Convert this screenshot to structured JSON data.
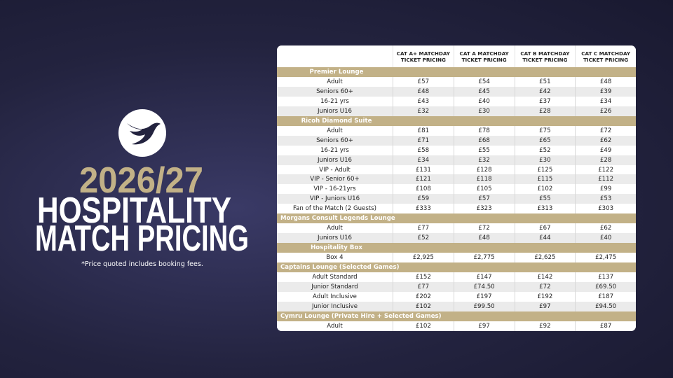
{
  "header": {
    "year": "2026/27",
    "line1": "HOSPITALITY",
    "line2": "MATCH PRICING",
    "note": "*Price quoted includes booking fees."
  },
  "table": {
    "columns": [
      [
        "CAT A+ MATCHDAY",
        "TICKET PRICING"
      ],
      [
        "CAT A MATCHDAY",
        "TICKET PRICING"
      ],
      [
        "CAT B MATCHDAY",
        "TICKET PRICING"
      ],
      [
        "CAT C MATCHDAY",
        "TICKET PRICING"
      ]
    ],
    "sections": [
      {
        "name": "Premier Lounge",
        "rows": [
          [
            "Adult",
            "£57",
            "£54",
            "£51",
            "£48"
          ],
          [
            "Seniors 60+",
            "£48",
            "£45",
            "£42",
            "£39"
          ],
          [
            "16-21 yrs",
            "£43",
            "£40",
            "£37",
            "£34"
          ],
          [
            "Juniors U16",
            "£32",
            "£30",
            "£28",
            "£26"
          ]
        ]
      },
      {
        "name": "Ricoh Diamond Suite",
        "rows": [
          [
            "Adult",
            "£81",
            "£78",
            "£75",
            "£72"
          ],
          [
            "Seniors 60+",
            "£71",
            "£68",
            "£65",
            "£62"
          ],
          [
            "16-21 yrs",
            "£58",
            "£55",
            "£52",
            "£49"
          ],
          [
            "Juniors U16",
            "£34",
            "£32",
            "£30",
            "£28"
          ],
          [
            "VIP - Adult",
            "£131",
            "£128",
            "£125",
            "£122"
          ],
          [
            "VIP - Senior 60+",
            "£121",
            "£118",
            "£115",
            "£112"
          ],
          [
            "VIP - 16-21yrs",
            "£108",
            "£105",
            "£102",
            "£99"
          ],
          [
            "VIP - Juniors U16",
            "£59",
            "£57",
            "£55",
            "£53"
          ],
          [
            "Fan of the Match (2 Guests)",
            "£333",
            "£323",
            "£313",
            "£303"
          ]
        ]
      },
      {
        "name": "Morgans Consult Legends Lounge",
        "rows": [
          [
            "Adult",
            "£77",
            "£72",
            "£67",
            "£62"
          ],
          [
            "Juniors U16",
            "£52",
            "£48",
            "£44",
            "£40"
          ]
        ]
      },
      {
        "name": "Hospitality Box",
        "rows": [
          [
            "Box 4",
            "£2,925",
            "£2,775",
            "£2,625",
            "£2,475"
          ]
        ]
      },
      {
        "name": "Captains Lounge (Selected Games)",
        "rows": [
          [
            "Adult Standard",
            "£152",
            "£147",
            "£142",
            "£137"
          ],
          [
            "Junior Standard",
            "£77",
            "£74.50",
            "£72",
            "£69.50"
          ],
          [
            "Adult Inclusive",
            "£202",
            "£197",
            "£192",
            "£187"
          ],
          [
            "Junior Inclusive",
            "£102",
            "£99.50",
            "£97",
            "£94.50"
          ]
        ]
      },
      {
        "name": "Cymru Lounge (Private Hire + Selected Games)",
        "rows": [
          [
            "Adult",
            "£102",
            "£97",
            "£92",
            "£87"
          ]
        ]
      }
    ]
  }
}
